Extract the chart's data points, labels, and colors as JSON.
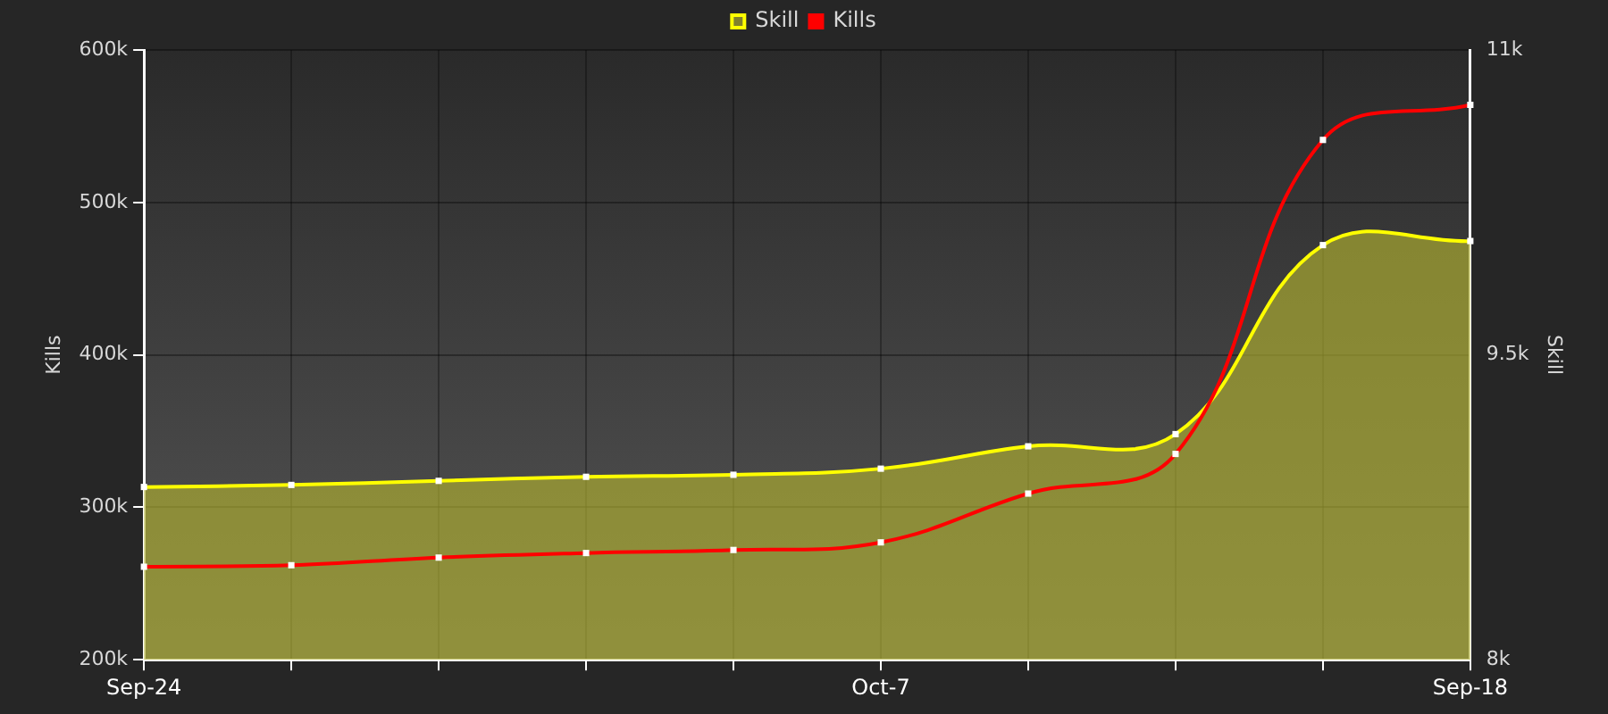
{
  "chart_data": {
    "type": "line",
    "categories": [
      "Sep-24",
      null,
      null,
      null,
      null,
      "Oct-7",
      null,
      null,
      null,
      "Sep-18"
    ],
    "series": [
      {
        "name": "Skill",
        "type": "area",
        "axis": "y2",
        "color": "#ffff00",
        "values": [
          8850,
          8860,
          8880,
          8900,
          8910,
          8940,
          9050,
          9110,
          10040,
          10060
        ]
      },
      {
        "name": "Kills",
        "type": "line",
        "color": "#ff0000",
        "values": [
          261000,
          262000,
          267000,
          270000,
          272000,
          277000,
          309000,
          335000,
          541000,
          564000
        ]
      }
    ],
    "ylabel": "Kills",
    "y2label": "Skill",
    "ylim": [
      200000,
      600000
    ],
    "yticks": [
      {
        "value": 200000,
        "label": "200k"
      },
      {
        "value": 300000,
        "label": "300k"
      },
      {
        "value": 400000,
        "label": "400k"
      },
      {
        "value": 500000,
        "label": "500k"
      },
      {
        "value": 600000,
        "label": "600k"
      }
    ],
    "y2lim": [
      8000,
      11000
    ],
    "y2ticks": [
      {
        "value": 8000,
        "label": "8k"
      },
      {
        "value": 9500,
        "label": "9.5k"
      },
      {
        "value": 11000,
        "label": "11k"
      }
    ],
    "grid": true,
    "legend": "top",
    "marker": "square"
  }
}
